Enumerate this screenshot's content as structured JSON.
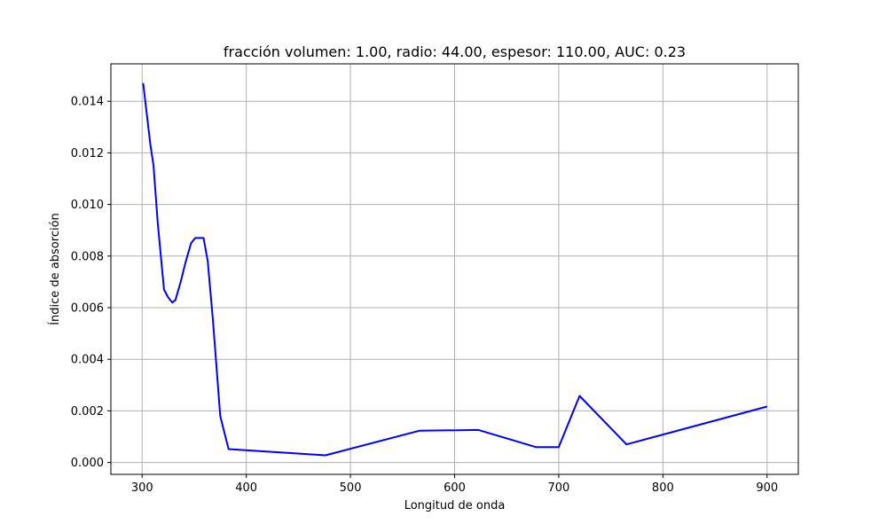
{
  "chart_data": {
    "type": "line",
    "title": "fracción volumen: 1.00, radio: 44.00, espesor: 110.00, AUC: 0.23",
    "xlabel": "Longitud de onda",
    "ylabel": "Índice de absorción",
    "xlim": [
      270,
      930
    ],
    "ylim": [
      -0.00046,
      0.01545
    ],
    "xticks": [
      300,
      400,
      500,
      600,
      700,
      800,
      900
    ],
    "xtick_labels": [
      "300",
      "400",
      "500",
      "600",
      "700",
      "800",
      "900"
    ],
    "yticks": [
      0.0,
      0.002,
      0.004,
      0.006,
      0.008,
      0.01,
      0.012,
      0.014
    ],
    "ytick_labels": [
      "0.000",
      "0.002",
      "0.004",
      "0.006",
      "0.008",
      "0.010",
      "0.012",
      "0.014"
    ],
    "grid": true,
    "series": [
      {
        "color": "#0000ff",
        "x": [
          301,
          308,
          311,
          315,
          321,
          325,
          329,
          332,
          337,
          342,
          347,
          351,
          355,
          359,
          363,
          368,
          375,
          383,
          476,
          566,
          623,
          678,
          700,
          720,
          765,
          900
        ],
        "y": [
          0.0147,
          0.0123,
          0.0115,
          0.0093,
          0.0067,
          0.0064,
          0.0062,
          0.0063,
          0.007,
          0.0078,
          0.0085,
          0.0087,
          0.0087,
          0.0087,
          0.0078,
          0.0055,
          0.0018,
          0.00052,
          0.00028,
          0.00123,
          0.00126,
          0.0006,
          0.0006,
          0.00258,
          0.0007,
          0.00217
        ]
      }
    ]
  }
}
